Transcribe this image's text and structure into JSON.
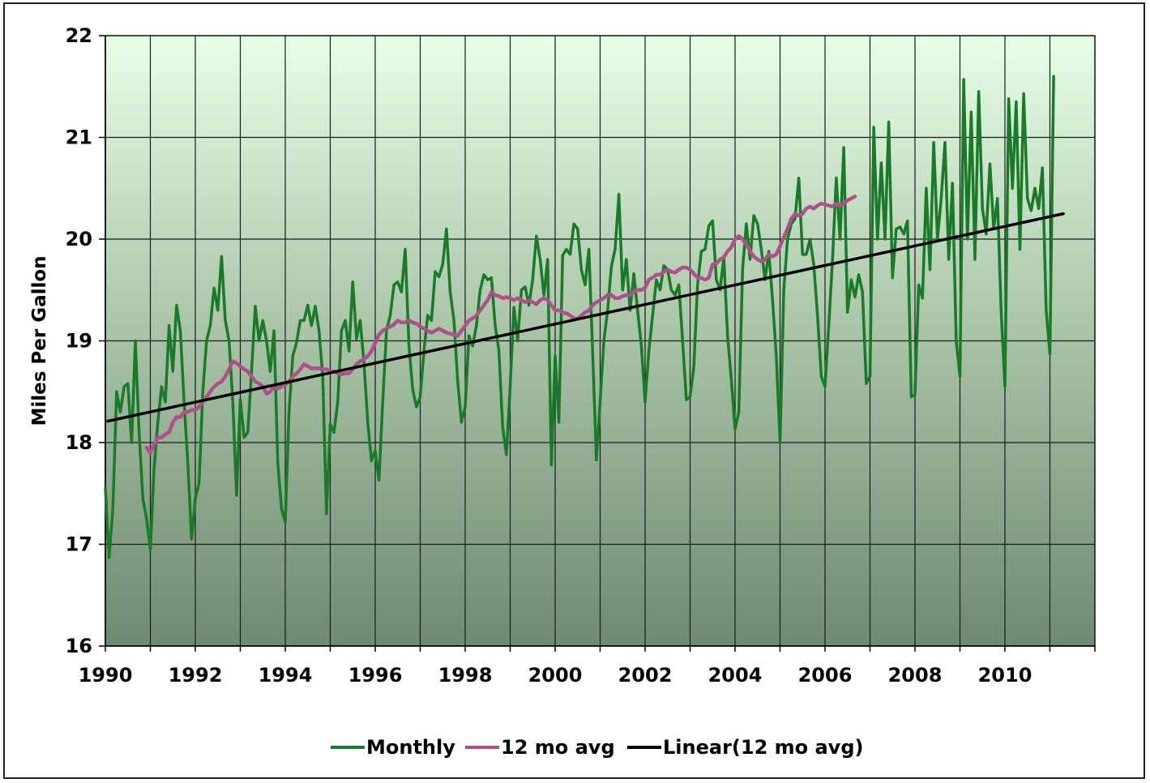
{
  "chart_data": {
    "type": "line",
    "title": "",
    "xlabel": "",
    "ylabel": "Miles Per Gallon",
    "xlim": [
      1990,
      2012.0
    ],
    "ylim": [
      16,
      22
    ],
    "x_ticks": [
      "1990",
      "1992",
      "1994",
      "1996",
      "1998",
      "2000",
      "2002",
      "2004",
      "2006",
      "2008",
      "2010"
    ],
    "x_tick_values": [
      1990,
      1992,
      1994,
      1996,
      1998,
      2000,
      2002,
      2004,
      2006,
      2008,
      2010
    ],
    "y_ticks": [
      "16",
      "17",
      "18",
      "19",
      "20",
      "21",
      "22"
    ],
    "y_tick_values": [
      16,
      17,
      18,
      19,
      20,
      21,
      22
    ],
    "grid": true,
    "legend_position": "bottom",
    "series": [
      {
        "name": "Monthly",
        "color": "#1a7a2a",
        "x_start": 1990.0,
        "x_step_months": 1,
        "values": [
          17.55,
          16.87,
          17.35,
          18.5,
          18.3,
          18.55,
          18.58,
          18.0,
          19.0,
          18.1,
          17.45,
          17.25,
          16.95,
          17.75,
          18.2,
          18.55,
          18.4,
          19.15,
          18.7,
          19.35,
          19.1,
          18.4,
          17.8,
          17.05,
          17.45,
          17.6,
          18.5,
          19.0,
          19.15,
          19.52,
          19.3,
          19.83,
          19.2,
          19.0,
          18.4,
          17.48,
          18.42,
          18.05,
          18.1,
          18.7,
          19.34,
          19.0,
          19.2,
          19.0,
          18.7,
          19.1,
          17.8,
          17.35,
          17.22,
          18.3,
          18.85,
          18.98,
          19.2,
          19.2,
          19.35,
          19.15,
          19.34,
          19.1,
          18.65,
          17.3,
          18.18,
          18.1,
          18.4,
          19.1,
          19.2,
          18.9,
          19.58,
          19.02,
          19.2,
          18.78,
          18.2,
          17.82,
          17.92,
          17.63,
          18.4,
          19.1,
          19.25,
          19.55,
          19.58,
          19.48,
          19.9,
          18.95,
          18.52,
          18.35,
          18.45,
          18.9,
          19.25,
          19.2,
          19.68,
          19.63,
          19.75,
          20.1,
          19.48,
          19.2,
          18.6,
          18.2,
          18.35,
          19.05,
          18.95,
          19.15,
          19.5,
          19.65,
          19.6,
          19.62,
          19.15,
          18.9,
          18.15,
          17.88,
          18.55,
          19.33,
          19.0,
          19.5,
          19.53,
          19.35,
          19.6,
          20.03,
          19.8,
          19.45,
          19.8,
          17.78,
          18.85,
          18.2,
          19.84,
          19.9,
          19.85,
          20.15,
          20.1,
          19.7,
          19.55,
          19.9,
          18.9,
          17.83,
          18.4,
          19.0,
          19.3,
          19.73,
          19.9,
          20.44,
          19.5,
          19.8,
          19.3,
          19.66,
          19.3,
          18.95,
          18.4,
          18.9,
          19.25,
          19.6,
          19.5,
          19.74,
          19.7,
          19.5,
          19.45,
          19.55,
          19.0,
          18.42,
          18.45,
          18.75,
          19.55,
          19.88,
          19.9,
          20.13,
          20.18,
          19.6,
          19.5,
          19.82,
          19.05,
          18.62,
          18.13,
          18.3,
          19.7,
          20.15,
          19.8,
          20.23,
          20.15,
          19.9,
          19.6,
          19.88,
          19.4,
          18.85,
          18.0,
          19.5,
          20.0,
          20.15,
          20.2,
          20.6,
          19.85,
          19.85,
          20.0,
          19.75,
          19.25,
          18.65,
          18.55,
          19.15,
          19.8,
          20.6,
          20.0,
          20.9,
          19.28,
          19.6,
          19.43,
          19.65,
          19.48,
          18.58,
          18.65,
          21.1,
          20.0,
          20.75,
          20.0,
          21.15,
          19.62,
          20.1,
          20.12,
          20.05,
          20.18,
          18.45,
          18.47,
          19.55,
          19.42,
          20.5,
          19.7,
          20.95,
          20.0,
          20.4,
          20.95,
          19.8,
          20.55,
          19.0,
          18.65,
          21.57,
          20.0,
          21.25,
          19.8,
          21.45,
          20.3,
          20.05,
          20.74,
          20.1,
          20.4,
          19.28,
          18.55,
          21.38,
          20.5,
          21.35,
          19.9,
          21.43,
          20.4,
          20.28,
          20.5,
          20.3,
          20.7,
          19.3,
          18.87,
          21.6
        ]
      },
      {
        "name": "12 mo avg",
        "color": "#b0508a",
        "x_start": 1990.9167,
        "x_step_months": 1,
        "values": [
          17.95,
          17.9,
          17.98,
          18.05,
          18.05,
          18.08,
          18.1,
          18.2,
          18.25,
          18.25,
          18.3,
          18.3,
          18.32,
          18.32,
          18.35,
          18.4,
          18.45,
          18.5,
          18.55,
          18.58,
          18.6,
          18.65,
          18.72,
          18.8,
          18.78,
          18.75,
          18.72,
          18.7,
          18.65,
          18.6,
          18.58,
          18.55,
          18.48,
          18.5,
          18.55,
          18.53,
          18.55,
          18.57,
          18.6,
          18.65,
          18.68,
          18.72,
          18.77,
          18.75,
          18.73,
          18.73,
          18.73,
          18.72,
          18.72,
          18.7,
          18.7,
          18.68,
          18.67,
          18.68,
          18.68,
          18.72,
          18.77,
          18.8,
          18.82,
          18.85,
          18.9,
          18.98,
          19.06,
          19.1,
          19.12,
          19.14,
          19.16,
          19.2,
          19.18,
          19.18,
          19.2,
          19.18,
          19.17,
          19.14,
          19.12,
          19.1,
          19.08,
          19.1,
          19.12,
          19.1,
          19.08,
          19.07,
          19.06,
          19.05,
          19.1,
          19.15,
          19.2,
          19.22,
          19.25,
          19.3,
          19.35,
          19.4,
          19.48,
          19.45,
          19.44,
          19.42,
          19.43,
          19.42,
          19.4,
          19.42,
          19.4,
          19.38,
          19.4,
          19.38,
          19.36,
          19.4,
          19.42,
          19.4,
          19.35,
          19.3,
          19.3,
          19.28,
          19.27,
          19.25,
          19.22,
          19.22,
          19.25,
          19.28,
          19.3,
          19.35,
          19.38,
          19.4,
          19.42,
          19.45,
          19.45,
          19.42,
          19.42,
          19.44,
          19.45,
          19.45,
          19.48,
          19.5,
          19.5,
          19.52,
          19.6,
          19.62,
          19.65,
          19.65,
          19.68,
          19.7,
          19.68,
          19.67,
          19.7,
          19.72,
          19.72,
          19.7,
          19.66,
          19.62,
          19.62,
          19.6,
          19.62,
          19.75,
          19.76,
          19.8,
          19.82,
          19.88,
          19.92,
          20.0,
          20.03,
          20.0,
          19.95,
          19.88,
          19.83,
          19.8,
          19.78,
          19.8,
          19.85,
          19.83,
          19.85,
          19.93,
          20.02,
          20.1,
          20.2,
          20.25,
          20.23,
          20.25,
          20.3,
          20.32,
          20.3,
          20.33,
          20.35,
          20.34,
          20.33,
          20.32,
          20.35,
          20.33,
          20.35,
          20.38,
          20.4,
          20.42
        ]
      },
      {
        "name": "Linear(12 mo avg)",
        "color": "#000000",
        "x": [
          1990.05,
          2011.3
        ],
        "values": [
          18.21,
          20.25
        ]
      }
    ]
  }
}
